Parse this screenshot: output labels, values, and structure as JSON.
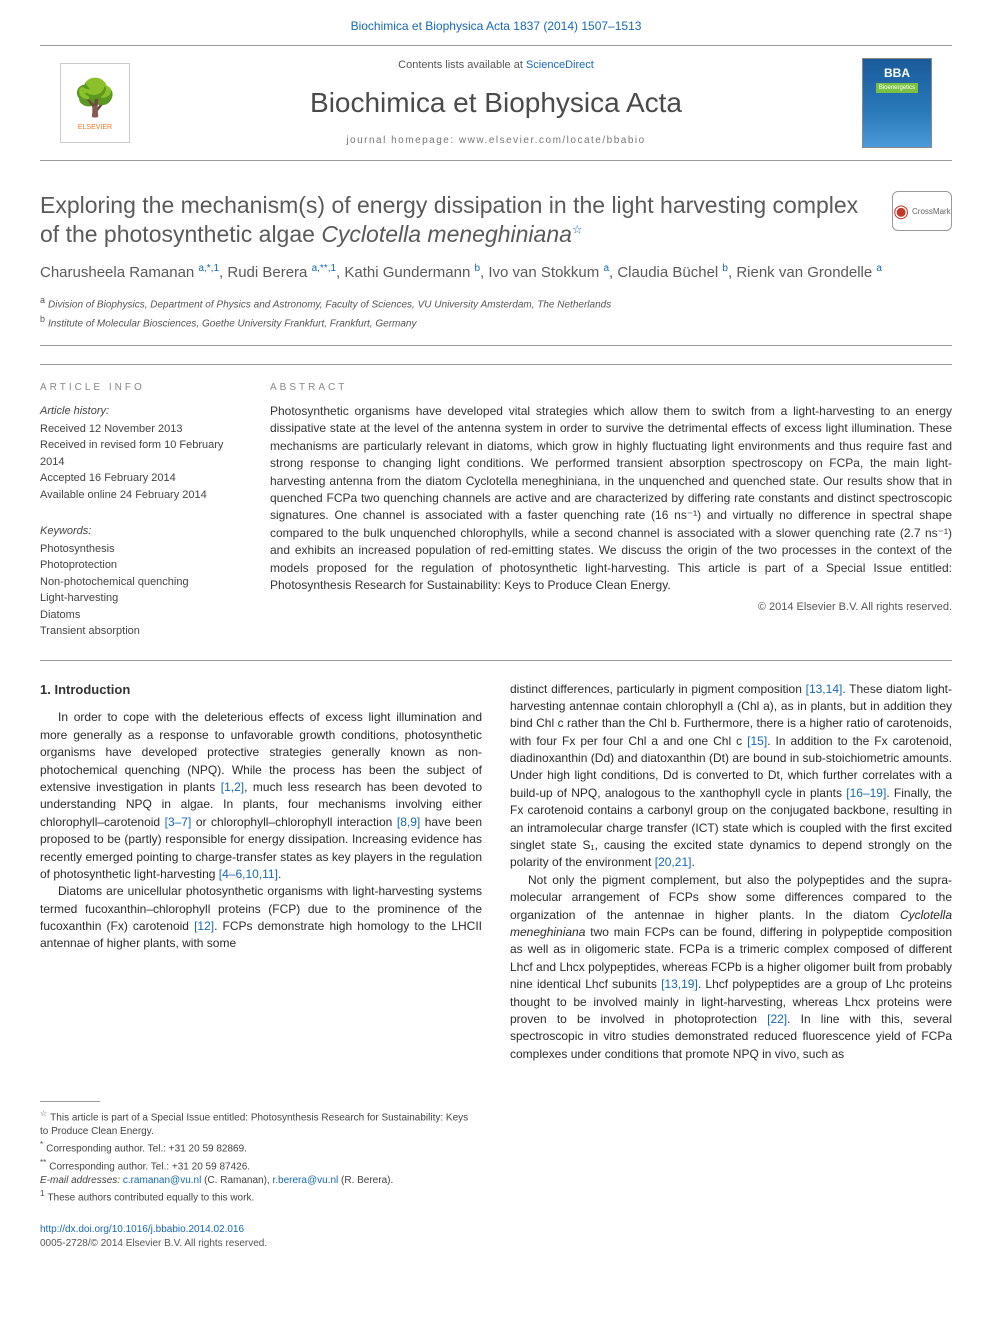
{
  "top_link": {
    "journal_ref": "Biochimica et Biophysica Acta 1837 (2014) 1507–1513",
    "color": "#1668b3"
  },
  "masthead": {
    "contents_prefix": "Contents lists available at ",
    "contents_link": "ScienceDirect",
    "journal_name": "Biochimica et Biophysica Acta",
    "homepage": "journal homepage: www.elsevier.com/locate/bbabio",
    "elsevier_label": "ELSEVIER",
    "cover_bba": "BBA",
    "cover_sub": "Bioenergetics"
  },
  "article": {
    "title_plain": "Exploring the mechanism(s) of energy dissipation in the light harvesting complex of the photosynthetic algae ",
    "title_species": "Cyclotella meneghiniana",
    "title_star": "☆",
    "crossmark": "CrossMark",
    "authors_html": "Charusheela Ramanan|a,*,1|, Rudi Berera|a,**,1|, Kathi Gundermann|b|, Ivo van Stokkum|a|, Claudia Büchel|b|, Rienk van Grondelle|a|",
    "authors": [
      {
        "name": "Charusheela Ramanan",
        "aff": "a,*,1"
      },
      {
        "name": "Rudi Berera",
        "aff": "a,**,1"
      },
      {
        "name": "Kathi Gundermann",
        "aff": "b"
      },
      {
        "name": "Ivo van Stokkum",
        "aff": "a"
      },
      {
        "name": "Claudia Büchel",
        "aff": "b"
      },
      {
        "name": "Rienk van Grondelle",
        "aff": "a"
      }
    ],
    "affiliations": [
      {
        "key": "a",
        "text": "Division of Biophysics, Department of Physics and Astronomy, Faculty of Sciences, VU University Amsterdam, The Netherlands"
      },
      {
        "key": "b",
        "text": "Institute of Molecular Biosciences, Goethe University Frankfurt, Frankfurt, Germany"
      }
    ]
  },
  "info": {
    "label": "ARTICLE INFO",
    "history_head": "Article history:",
    "history": [
      "Received 12 November 2013",
      "Received in revised form 10 February 2014",
      "Accepted 16 February 2014",
      "Available online 24 February 2014"
    ],
    "keywords_head": "Keywords:",
    "keywords": [
      "Photosynthesis",
      "Photoprotection",
      "Non-photochemical quenching",
      "Light-harvesting",
      "Diatoms",
      "Transient absorption"
    ]
  },
  "abstract": {
    "label": "ABSTRACT",
    "text": "Photosynthetic organisms have developed vital strategies which allow them to switch from a light-harvesting to an energy dissipative state at the level of the antenna system in order to survive the detrimental effects of excess light illumination. These mechanisms are particularly relevant in diatoms, which grow in highly fluctuating light environments and thus require fast and strong response to changing light conditions. We performed transient absorption spectroscopy on FCPa, the main light-harvesting antenna from the diatom Cyclotella meneghiniana, in the unquenched and quenched state. Our results show that in quenched FCPa two quenching channels are active and are characterized by differing rate constants and distinct spectroscopic signatures. One channel is associated with a faster quenching rate (16 ns⁻¹) and virtually no difference in spectral shape compared to the bulk unquenched chlorophylls, while a second channel is associated with a slower quenching rate (2.7 ns⁻¹) and exhibits an increased population of red-emitting states. We discuss the origin of the two processes in the context of the models proposed for the regulation of photosynthetic light-harvesting. This article is part of a Special Issue entitled: Photosynthesis Research for Sustainability: Keys to Produce Clean Energy.",
    "copyright": "© 2014 Elsevier B.V. All rights reserved."
  },
  "section1": {
    "heading": "1. Introduction",
    "para1": "In order to cope with the deleterious effects of excess light illumination and more generally as a response to unfavorable growth conditions, photosynthetic organisms have developed protective strategies generally known as non-photochemical quenching (NPQ). While the process has been the subject of extensive investigation in plants [1,2], much less research has been devoted to understanding NPQ in algae. In plants, four mechanisms involving either chlorophyll–carotenoid [3–7] or chlorophyll–chlorophyll interaction [8,9] have been proposed to be (partly) responsible for energy dissipation. Increasing evidence has recently emerged pointing to charge-transfer states as key players in the regulation of photosynthetic light-harvesting [4–6,10,11].",
    "para2": "Diatoms are unicellular photosynthetic organisms with light-harvesting systems termed fucoxanthin–chlorophyll proteins (FCP) due to the prominence of the fucoxanthin (Fx) carotenoid [12]. FCPs demonstrate high homology to the LHCII antennae of higher plants, with some",
    "para3": "distinct differences, particularly in pigment composition [13,14]. These diatom light-harvesting antennae contain chlorophyll a (Chl a), as in plants, but in addition they bind Chl c rather than the Chl b. Furthermore, there is a higher ratio of carotenoids, with four Fx per four Chl a and one Chl c [15]. In addition to the Fx carotenoid, diadinoxanthin (Dd) and diatoxanthin (Dt) are bound in sub-stoichiometric amounts. Under high light conditions, Dd is converted to Dt, which further correlates with a build-up of NPQ, analogous to the xanthophyll cycle in plants [16–19]. Finally, the Fx carotenoid contains a carbonyl group on the conjugated backbone, resulting in an intramolecular charge transfer (ICT) state which is coupled with the first excited singlet state S₁, causing the excited state dynamics to depend strongly on the polarity of the environment [20,21].",
    "para4": "Not only the pigment complement, but also the polypeptides and the supra-molecular arrangement of FCPs show some differences compared to the organization of the antennae in higher plants. In the diatom Cyclotella meneghiniana two main FCPs can be found, differing in polypeptide composition as well as in oligomeric state. FCPa is a trimeric complex composed of different Lhcf and Lhcx polypeptides, whereas FCPb is a higher oligomer built from probably nine identical Lhcf subunits [13,19]. Lhcf polypeptides are a group of Lhc proteins thought to be involved mainly in light-harvesting, whereas Lhcx proteins were proven to be involved in photoprotection [22]. In line with this, several spectroscopic in vitro studies demonstrated reduced fluorescence yield of FCPa complexes under conditions that promote NPQ in vivo, such as"
  },
  "footnotes": {
    "star": "This article is part of a Special Issue entitled: Photosynthesis Research for Sustainability: Keys to Produce Clean Energy.",
    "corr1": "Corresponding author. Tel.: +31 20 59 82869.",
    "corr2": "Corresponding author. Tel.: +31 20 59 87426.",
    "email_label": "E-mail addresses: ",
    "email1": "c.ramanan@vu.nl",
    "email1_name": " (C. Ramanan), ",
    "email2": "r.berera@vu.nl",
    "email2_name": " (R. Berera).",
    "note1": "These authors contributed equally to this work."
  },
  "bottom": {
    "doi": "http://dx.doi.org/10.1016/j.bbabio.2014.02.016",
    "issn": "0005-2728/© 2014 Elsevier B.V. All rights reserved."
  },
  "colors": {
    "link": "#1668b3",
    "text": "#2a2a2a",
    "elsevier_orange": "#f47721",
    "border": "#999999"
  }
}
